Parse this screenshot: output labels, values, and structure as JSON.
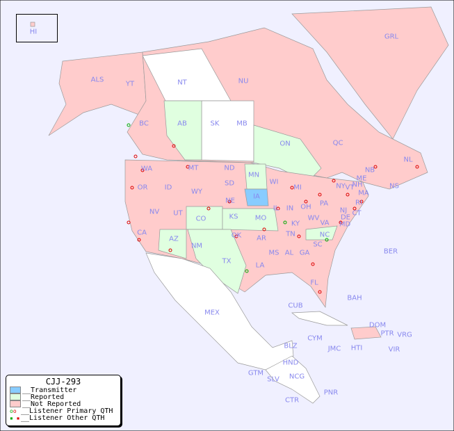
{
  "title": "CJJ-293",
  "colors": {
    "ocean": "#f0f0ff",
    "transmitter": "#88ccff",
    "reported": "#e0ffe0",
    "not_reported": "#ffcccc",
    "unlisted": "#ffffff",
    "label": "#8888ee",
    "primary_qth": "#00aa00",
    "other_qth": "#dd0000"
  },
  "legend": [
    {
      "label": "__Transmitter",
      "swatch": "#88ccff"
    },
    {
      "label": "__Reported",
      "swatch": "#e0ffe0"
    },
    {
      "label": "__Not Reported",
      "swatch": "#ffcccc"
    },
    {
      "label": "__Listener Primary QTH",
      "marker": "circle"
    },
    {
      "label": "__Listener Other QTH",
      "marker": "square"
    }
  ],
  "regions": [
    "HI",
    "ALS",
    "YT",
    "NT",
    "NU",
    "GRL",
    "BC",
    "AB",
    "SK",
    "MB",
    "ON",
    "QC",
    "NL",
    "NS",
    "NB",
    "ME",
    "NH",
    "VT",
    "MA",
    "RI",
    "CT",
    "NY",
    "NJ",
    "PA",
    "DE",
    "MD",
    "WA",
    "OR",
    "ID",
    "MT",
    "WY",
    "ND",
    "SD",
    "MN",
    "WI",
    "MI",
    "NE",
    "IA",
    "IL",
    "IN",
    "OH",
    "WV",
    "VA",
    "KY",
    "TN",
    "NC",
    "SC",
    "GA",
    "AL",
    "MS",
    "LA",
    "AR",
    "MO",
    "KS",
    "OK",
    "TX",
    "NM",
    "AZ",
    "CO",
    "UT",
    "NV",
    "CA",
    "FL",
    "MEX",
    "CUB",
    "BAH",
    "DOM",
    "PTR",
    "VRG",
    "CYM",
    "JMC",
    "HTI",
    "VIR",
    "BLZ",
    "HND",
    "GTM",
    "SLV",
    "NCG",
    "CTR",
    "PNR",
    "BER"
  ]
}
